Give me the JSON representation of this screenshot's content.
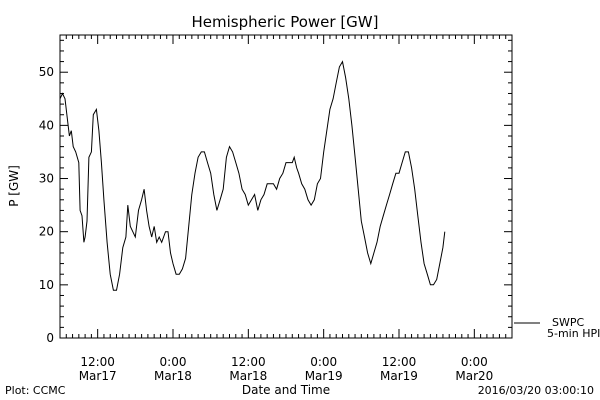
{
  "chart_data": {
    "type": "line",
    "title": "Hemispheric Power [GW]",
    "ylabel": "P [GW]",
    "xlabel": "Date and Time",
    "ylim": [
      0,
      57
    ],
    "xlim_hours": [
      0,
      72
    ],
    "y_ticks": [
      0,
      10,
      20,
      30,
      40,
      50
    ],
    "x_ticks": [
      {
        "h": 6,
        "line1": "12:00",
        "line2": "Mar17"
      },
      {
        "h": 18,
        "line1": "0:00",
        "line2": "Mar18"
      },
      {
        "h": 30,
        "line1": "12:00",
        "line2": "Mar18"
      },
      {
        "h": 42,
        "line1": "0:00",
        "line2": "Mar19"
      },
      {
        "h": 54,
        "line1": "12:00",
        "line2": "Mar19"
      },
      {
        "h": 66,
        "line1": "0:00",
        "line2": "Mar20"
      }
    ],
    "grid": false,
    "series": [
      {
        "name": "5-min HPI",
        "color": "#000000",
        "points": [
          [
            0,
            45
          ],
          [
            0.4,
            46
          ],
          [
            0.8,
            45
          ],
          [
            1.2,
            41
          ],
          [
            1.5,
            38
          ],
          [
            1.8,
            39
          ],
          [
            2.1,
            36
          ],
          [
            2.5,
            35
          ],
          [
            3.0,
            33
          ],
          [
            3.2,
            24
          ],
          [
            3.5,
            23
          ],
          [
            3.8,
            18
          ],
          [
            4.0,
            19
          ],
          [
            4.3,
            22
          ],
          [
            4.6,
            34
          ],
          [
            5.0,
            35
          ],
          [
            5.3,
            42
          ],
          [
            5.8,
            43
          ],
          [
            6.2,
            39
          ],
          [
            6.6,
            33
          ],
          [
            7.0,
            26
          ],
          [
            7.5,
            18
          ],
          [
            8.0,
            12
          ],
          [
            8.5,
            9
          ],
          [
            9.0,
            9
          ],
          [
            9.5,
            12
          ],
          [
            10.0,
            17
          ],
          [
            10.5,
            19
          ],
          [
            10.8,
            25
          ],
          [
            11.2,
            21
          ],
          [
            11.6,
            20
          ],
          [
            12.0,
            19
          ],
          [
            12.5,
            24
          ],
          [
            13.0,
            26
          ],
          [
            13.4,
            28
          ],
          [
            13.8,
            24
          ],
          [
            14.2,
            21
          ],
          [
            14.6,
            19
          ],
          [
            15.0,
            21
          ],
          [
            15.4,
            18
          ],
          [
            15.8,
            19
          ],
          [
            16.2,
            18
          ],
          [
            16.8,
            20
          ],
          [
            17.2,
            20
          ],
          [
            17.6,
            16
          ],
          [
            18.0,
            14
          ],
          [
            18.5,
            12
          ],
          [
            19.0,
            12
          ],
          [
            19.5,
            13
          ],
          [
            20.0,
            15
          ],
          [
            20.5,
            21
          ],
          [
            21.0,
            27
          ],
          [
            21.5,
            31
          ],
          [
            22.0,
            34
          ],
          [
            22.5,
            35
          ],
          [
            23.0,
            35
          ],
          [
            23.5,
            33
          ],
          [
            24.0,
            31
          ],
          [
            24.5,
            27
          ],
          [
            25.0,
            24
          ],
          [
            25.5,
            26
          ],
          [
            26.0,
            28
          ],
          [
            26.5,
            34
          ],
          [
            27.0,
            36
          ],
          [
            27.5,
            35
          ],
          [
            28.0,
            33
          ],
          [
            28.5,
            31
          ],
          [
            29.0,
            28
          ],
          [
            29.5,
            27
          ],
          [
            30.0,
            25
          ],
          [
            30.5,
            26
          ],
          [
            31.0,
            27
          ],
          [
            31.5,
            24
          ],
          [
            32.0,
            26
          ],
          [
            32.5,
            27
          ],
          [
            33.0,
            29
          ],
          [
            33.5,
            29
          ],
          [
            34.0,
            29
          ],
          [
            34.5,
            28
          ],
          [
            35.0,
            30
          ],
          [
            35.5,
            31
          ],
          [
            36.0,
            33
          ],
          [
            36.5,
            33
          ],
          [
            37.0,
            33
          ],
          [
            37.3,
            34
          ],
          [
            37.7,
            32
          ],
          [
            38.0,
            31
          ],
          [
            38.5,
            29
          ],
          [
            39.0,
            28
          ],
          [
            39.5,
            26
          ],
          [
            40.0,
            25
          ],
          [
            40.5,
            26
          ],
          [
            41.0,
            29
          ],
          [
            41.5,
            30
          ],
          [
            42.0,
            35
          ],
          [
            42.5,
            39
          ],
          [
            43.0,
            43
          ],
          [
            43.5,
            45
          ],
          [
            44.0,
            48
          ],
          [
            44.5,
            51
          ],
          [
            45.0,
            52
          ],
          [
            45.5,
            49
          ],
          [
            46.0,
            45
          ],
          [
            46.5,
            40
          ],
          [
            47.0,
            34
          ],
          [
            47.5,
            28
          ],
          [
            48.0,
            22
          ],
          [
            48.5,
            19
          ],
          [
            49.0,
            16
          ],
          [
            49.5,
            14
          ],
          [
            50.0,
            16
          ],
          [
            50.5,
            18
          ],
          [
            51.0,
            21
          ],
          [
            51.5,
            23
          ],
          [
            52.0,
            25
          ],
          [
            52.5,
            27
          ],
          [
            53.0,
            29
          ],
          [
            53.5,
            31
          ],
          [
            54.0,
            31
          ],
          [
            54.5,
            33
          ],
          [
            55.0,
            35
          ],
          [
            55.5,
            35
          ],
          [
            56.0,
            32
          ],
          [
            56.5,
            28
          ],
          [
            57.0,
            23
          ],
          [
            57.5,
            18
          ],
          [
            58.0,
            14
          ],
          [
            58.5,
            12
          ],
          [
            59.0,
            10
          ],
          [
            59.5,
            10
          ],
          [
            60.0,
            11
          ],
          [
            60.5,
            14
          ],
          [
            61.0,
            17
          ],
          [
            61.3,
            20
          ]
        ]
      }
    ],
    "legend": [
      {
        "label": "SWPC",
        "line": false
      },
      {
        "label": "5-min HPI",
        "line": true
      }
    ],
    "legend_position": "right-bottom, outside plot"
  },
  "footer": {
    "left": "Plot: CCMC",
    "center": "Date and Time",
    "right": "2016/03/20 03:00:10"
  }
}
